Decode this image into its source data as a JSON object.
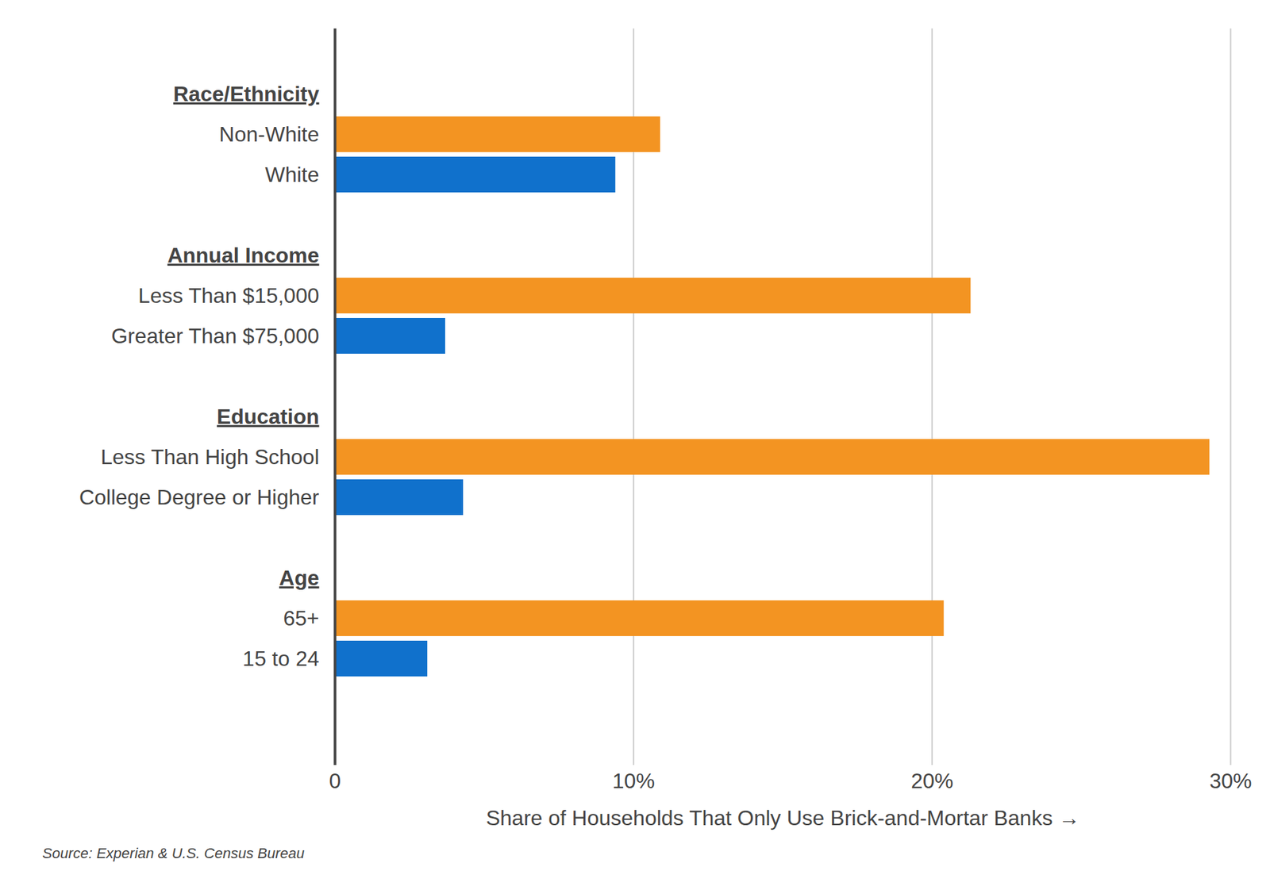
{
  "chart_data": {
    "type": "bar",
    "orientation": "horizontal",
    "xlabel": "Share of Households That Only Use Brick-and-Mortar Banks",
    "caption": "Source: Experian & U.S. Census Bureau",
    "groups": [
      "Race/Ethnicity",
      "Race/Ethnicity",
      "Annual Income",
      "Annual Income",
      "Education",
      "Education",
      "Age",
      "Age"
    ],
    "categories": [
      "Non-White",
      "White",
      "Less Than $15,000",
      "Greater Than $75,000",
      "Less Than High School",
      "College Degree or Higher",
      "65+",
      "15 to 24"
    ],
    "values": [
      10.9,
      9.4,
      21.3,
      3.7,
      29.3,
      4.3,
      20.4,
      3.1
    ],
    "colors": [
      "#f39422",
      "#1071cc",
      "#f39422",
      "#1071cc",
      "#f39422",
      "#1071cc",
      "#f39422",
      "#1071cc"
    ],
    "xlim": [
      0,
      30
    ],
    "xticks": [
      0,
      {
        "value": 10,
        "label": "10%"
      },
      {
        "value": 20,
        "label": "20%"
      },
      {
        "value": 30,
        "label": "30%"
      }
    ],
    "grid": true
  }
}
